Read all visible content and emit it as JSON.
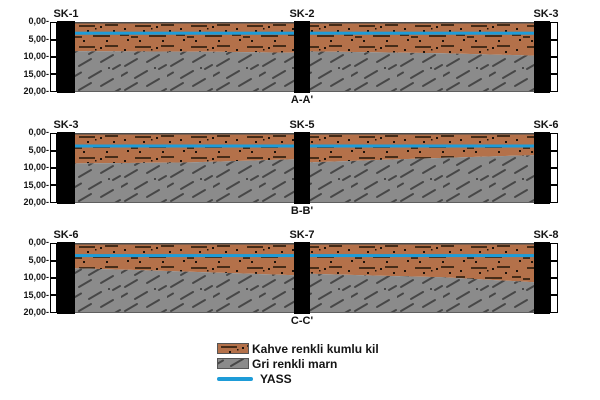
{
  "colors": {
    "clay": "#b4714a",
    "clay_dash": "#462c18",
    "clay_dot": "#1c120a",
    "marl": "#8b8b8b",
    "marl_dash": "#474747",
    "water_line": "#1e9cd8",
    "borehole": "#000000",
    "outline": "#4a4a4a",
    "text": "#141414",
    "background": "#ffffff"
  },
  "depth_axis": {
    "ticks": [
      "0,00-",
      "5,00-",
      "10,00-",
      "15,00-",
      "20,00-"
    ],
    "max_depth_m": 20,
    "interval_m": 5
  },
  "sections": [
    {
      "label": "A-A'",
      "boreholes": {
        "left": "SK-1",
        "middle": "SK-2",
        "right": "SK-3"
      },
      "water_table_depth_m": 3.2,
      "clay_marl_boundary": [
        [
          0,
          8.3
        ],
        [
          0.3,
          8.5
        ],
        [
          0.48,
          8.8
        ],
        [
          0.51,
          8.4
        ],
        [
          0.8,
          8.9
        ],
        [
          1,
          9.6
        ]
      ]
    },
    {
      "label": "B-B'",
      "boreholes": {
        "left": "SK-3",
        "middle": "SK-5",
        "right": "SK-6"
      },
      "water_table_depth_m": 3.7,
      "clay_marl_boundary": [
        [
          0,
          8.7
        ],
        [
          0.25,
          8.4
        ],
        [
          0.48,
          7.5
        ],
        [
          0.51,
          8.4
        ],
        [
          0.75,
          7.3
        ],
        [
          1,
          6.3
        ]
      ]
    },
    {
      "label": "C-C'",
      "boreholes": {
        "left": "SK-6",
        "middle": "SK-7",
        "right": "SK-8"
      },
      "water_table_depth_m": 3.6,
      "clay_marl_boundary": [
        [
          0,
          7.2
        ],
        [
          0.25,
          8.2
        ],
        [
          0.48,
          9.2
        ],
        [
          0.51,
          8.8
        ],
        [
          0.8,
          9.8
        ],
        [
          1,
          11.2
        ]
      ]
    }
  ],
  "legend": {
    "items": [
      {
        "key": "clay",
        "label": "Kahve renkli kumlu kil"
      },
      {
        "key": "marl",
        "label": "Gri renkli marn"
      },
      {
        "key": "water",
        "label": "YASS"
      }
    ]
  }
}
